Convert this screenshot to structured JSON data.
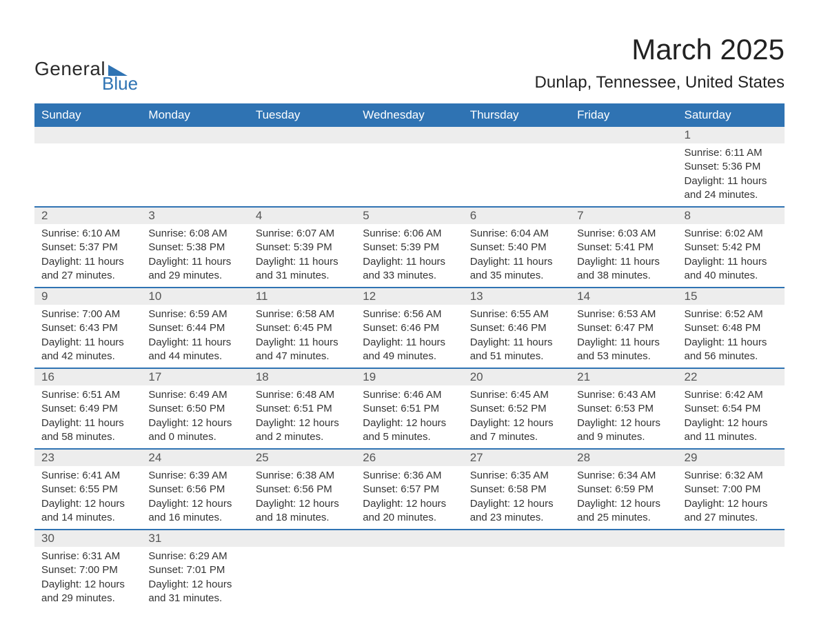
{
  "logo": {
    "text1": "General",
    "text2": "Blue",
    "tri_color": "#2f73b3"
  },
  "title": "March 2025",
  "location": "Dunlap, Tennessee, United States",
  "header_bg": "#2f73b3",
  "header_fg": "#ffffff",
  "daynum_bg": "#ededed",
  "border_color": "#2f73b3",
  "weekdays": [
    "Sunday",
    "Monday",
    "Tuesday",
    "Wednesday",
    "Thursday",
    "Friday",
    "Saturday"
  ],
  "weeks": [
    [
      {
        "day": "",
        "sunrise": "",
        "sunset": "",
        "daylight": ""
      },
      {
        "day": "",
        "sunrise": "",
        "sunset": "",
        "daylight": ""
      },
      {
        "day": "",
        "sunrise": "",
        "sunset": "",
        "daylight": ""
      },
      {
        "day": "",
        "sunrise": "",
        "sunset": "",
        "daylight": ""
      },
      {
        "day": "",
        "sunrise": "",
        "sunset": "",
        "daylight": ""
      },
      {
        "day": "",
        "sunrise": "",
        "sunset": "",
        "daylight": ""
      },
      {
        "day": "1",
        "sunrise": "Sunrise: 6:11 AM",
        "sunset": "Sunset: 5:36 PM",
        "daylight": "Daylight: 11 hours and 24 minutes."
      }
    ],
    [
      {
        "day": "2",
        "sunrise": "Sunrise: 6:10 AM",
        "sunset": "Sunset: 5:37 PM",
        "daylight": "Daylight: 11 hours and 27 minutes."
      },
      {
        "day": "3",
        "sunrise": "Sunrise: 6:08 AM",
        "sunset": "Sunset: 5:38 PM",
        "daylight": "Daylight: 11 hours and 29 minutes."
      },
      {
        "day": "4",
        "sunrise": "Sunrise: 6:07 AM",
        "sunset": "Sunset: 5:39 PM",
        "daylight": "Daylight: 11 hours and 31 minutes."
      },
      {
        "day": "5",
        "sunrise": "Sunrise: 6:06 AM",
        "sunset": "Sunset: 5:39 PM",
        "daylight": "Daylight: 11 hours and 33 minutes."
      },
      {
        "day": "6",
        "sunrise": "Sunrise: 6:04 AM",
        "sunset": "Sunset: 5:40 PM",
        "daylight": "Daylight: 11 hours and 35 minutes."
      },
      {
        "day": "7",
        "sunrise": "Sunrise: 6:03 AM",
        "sunset": "Sunset: 5:41 PM",
        "daylight": "Daylight: 11 hours and 38 minutes."
      },
      {
        "day": "8",
        "sunrise": "Sunrise: 6:02 AM",
        "sunset": "Sunset: 5:42 PM",
        "daylight": "Daylight: 11 hours and 40 minutes."
      }
    ],
    [
      {
        "day": "9",
        "sunrise": "Sunrise: 7:00 AM",
        "sunset": "Sunset: 6:43 PM",
        "daylight": "Daylight: 11 hours and 42 minutes."
      },
      {
        "day": "10",
        "sunrise": "Sunrise: 6:59 AM",
        "sunset": "Sunset: 6:44 PM",
        "daylight": "Daylight: 11 hours and 44 minutes."
      },
      {
        "day": "11",
        "sunrise": "Sunrise: 6:58 AM",
        "sunset": "Sunset: 6:45 PM",
        "daylight": "Daylight: 11 hours and 47 minutes."
      },
      {
        "day": "12",
        "sunrise": "Sunrise: 6:56 AM",
        "sunset": "Sunset: 6:46 PM",
        "daylight": "Daylight: 11 hours and 49 minutes."
      },
      {
        "day": "13",
        "sunrise": "Sunrise: 6:55 AM",
        "sunset": "Sunset: 6:46 PM",
        "daylight": "Daylight: 11 hours and 51 minutes."
      },
      {
        "day": "14",
        "sunrise": "Sunrise: 6:53 AM",
        "sunset": "Sunset: 6:47 PM",
        "daylight": "Daylight: 11 hours and 53 minutes."
      },
      {
        "day": "15",
        "sunrise": "Sunrise: 6:52 AM",
        "sunset": "Sunset: 6:48 PM",
        "daylight": "Daylight: 11 hours and 56 minutes."
      }
    ],
    [
      {
        "day": "16",
        "sunrise": "Sunrise: 6:51 AM",
        "sunset": "Sunset: 6:49 PM",
        "daylight": "Daylight: 11 hours and 58 minutes."
      },
      {
        "day": "17",
        "sunrise": "Sunrise: 6:49 AM",
        "sunset": "Sunset: 6:50 PM",
        "daylight": "Daylight: 12 hours and 0 minutes."
      },
      {
        "day": "18",
        "sunrise": "Sunrise: 6:48 AM",
        "sunset": "Sunset: 6:51 PM",
        "daylight": "Daylight: 12 hours and 2 minutes."
      },
      {
        "day": "19",
        "sunrise": "Sunrise: 6:46 AM",
        "sunset": "Sunset: 6:51 PM",
        "daylight": "Daylight: 12 hours and 5 minutes."
      },
      {
        "day": "20",
        "sunrise": "Sunrise: 6:45 AM",
        "sunset": "Sunset: 6:52 PM",
        "daylight": "Daylight: 12 hours and 7 minutes."
      },
      {
        "day": "21",
        "sunrise": "Sunrise: 6:43 AM",
        "sunset": "Sunset: 6:53 PM",
        "daylight": "Daylight: 12 hours and 9 minutes."
      },
      {
        "day": "22",
        "sunrise": "Sunrise: 6:42 AM",
        "sunset": "Sunset: 6:54 PM",
        "daylight": "Daylight: 12 hours and 11 minutes."
      }
    ],
    [
      {
        "day": "23",
        "sunrise": "Sunrise: 6:41 AM",
        "sunset": "Sunset: 6:55 PM",
        "daylight": "Daylight: 12 hours and 14 minutes."
      },
      {
        "day": "24",
        "sunrise": "Sunrise: 6:39 AM",
        "sunset": "Sunset: 6:56 PM",
        "daylight": "Daylight: 12 hours and 16 minutes."
      },
      {
        "day": "25",
        "sunrise": "Sunrise: 6:38 AM",
        "sunset": "Sunset: 6:56 PM",
        "daylight": "Daylight: 12 hours and 18 minutes."
      },
      {
        "day": "26",
        "sunrise": "Sunrise: 6:36 AM",
        "sunset": "Sunset: 6:57 PM",
        "daylight": "Daylight: 12 hours and 20 minutes."
      },
      {
        "day": "27",
        "sunrise": "Sunrise: 6:35 AM",
        "sunset": "Sunset: 6:58 PM",
        "daylight": "Daylight: 12 hours and 23 minutes."
      },
      {
        "day": "28",
        "sunrise": "Sunrise: 6:34 AM",
        "sunset": "Sunset: 6:59 PM",
        "daylight": "Daylight: 12 hours and 25 minutes."
      },
      {
        "day": "29",
        "sunrise": "Sunrise: 6:32 AM",
        "sunset": "Sunset: 7:00 PM",
        "daylight": "Daylight: 12 hours and 27 minutes."
      }
    ],
    [
      {
        "day": "30",
        "sunrise": "Sunrise: 6:31 AM",
        "sunset": "Sunset: 7:00 PM",
        "daylight": "Daylight: 12 hours and 29 minutes."
      },
      {
        "day": "31",
        "sunrise": "Sunrise: 6:29 AM",
        "sunset": "Sunset: 7:01 PM",
        "daylight": "Daylight: 12 hours and 31 minutes."
      },
      {
        "day": "",
        "sunrise": "",
        "sunset": "",
        "daylight": ""
      },
      {
        "day": "",
        "sunrise": "",
        "sunset": "",
        "daylight": ""
      },
      {
        "day": "",
        "sunrise": "",
        "sunset": "",
        "daylight": ""
      },
      {
        "day": "",
        "sunrise": "",
        "sunset": "",
        "daylight": ""
      },
      {
        "day": "",
        "sunrise": "",
        "sunset": "",
        "daylight": ""
      }
    ]
  ]
}
